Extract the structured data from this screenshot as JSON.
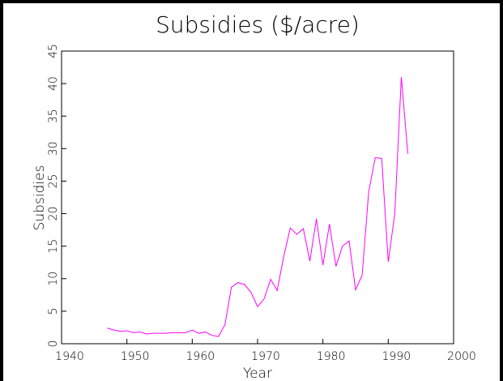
{
  "chart_data": {
    "type": "line",
    "title": "Subsidies ($/acre)",
    "x_label": "Year",
    "y_label": "Subsidies",
    "x": [
      1947,
      1948,
      1949,
      1950,
      1951,
      1952,
      1953,
      1954,
      1955,
      1956,
      1957,
      1958,
      1959,
      1960,
      1961,
      1962,
      1963,
      1964,
      1965,
      1966,
      1967,
      1968,
      1969,
      1970,
      1971,
      1972,
      1973,
      1974,
      1975,
      1976,
      1977,
      1978,
      1979,
      1980,
      1981,
      1982,
      1983,
      1984,
      1985,
      1986,
      1987,
      1988,
      1989,
      1990,
      1991,
      1992,
      1993
    ],
    "series": [
      {
        "name": "Subsidies",
        "color": "#ff00ff",
        "values": [
          2.4,
          2.1,
          1.9,
          2.0,
          1.7,
          1.8,
          1.5,
          1.6,
          1.6,
          1.6,
          1.7,
          1.7,
          1.7,
          2.1,
          1.6,
          1.8,
          1.3,
          1.1,
          2.9,
          8.7,
          9.4,
          9.1,
          7.9,
          5.7,
          6.9,
          9.9,
          8.2,
          13.4,
          17.8,
          16.8,
          17.7,
          12.7,
          19.2,
          12.1,
          18.4,
          11.9,
          15.0,
          15.8,
          8.3,
          10.5,
          23.3,
          28.6,
          28.5,
          12.6,
          20.0,
          41.0,
          29.2
        ]
      }
    ],
    "xlim": [
      1940,
      2000
    ],
    "xticks": [
      1940,
      1950,
      1960,
      1970,
      1980,
      1990,
      2000
    ],
    "ylim": [
      0,
      45
    ],
    "yticks": [
      0,
      5,
      10,
      15,
      20,
      25,
      30,
      35,
      40,
      45
    ]
  }
}
